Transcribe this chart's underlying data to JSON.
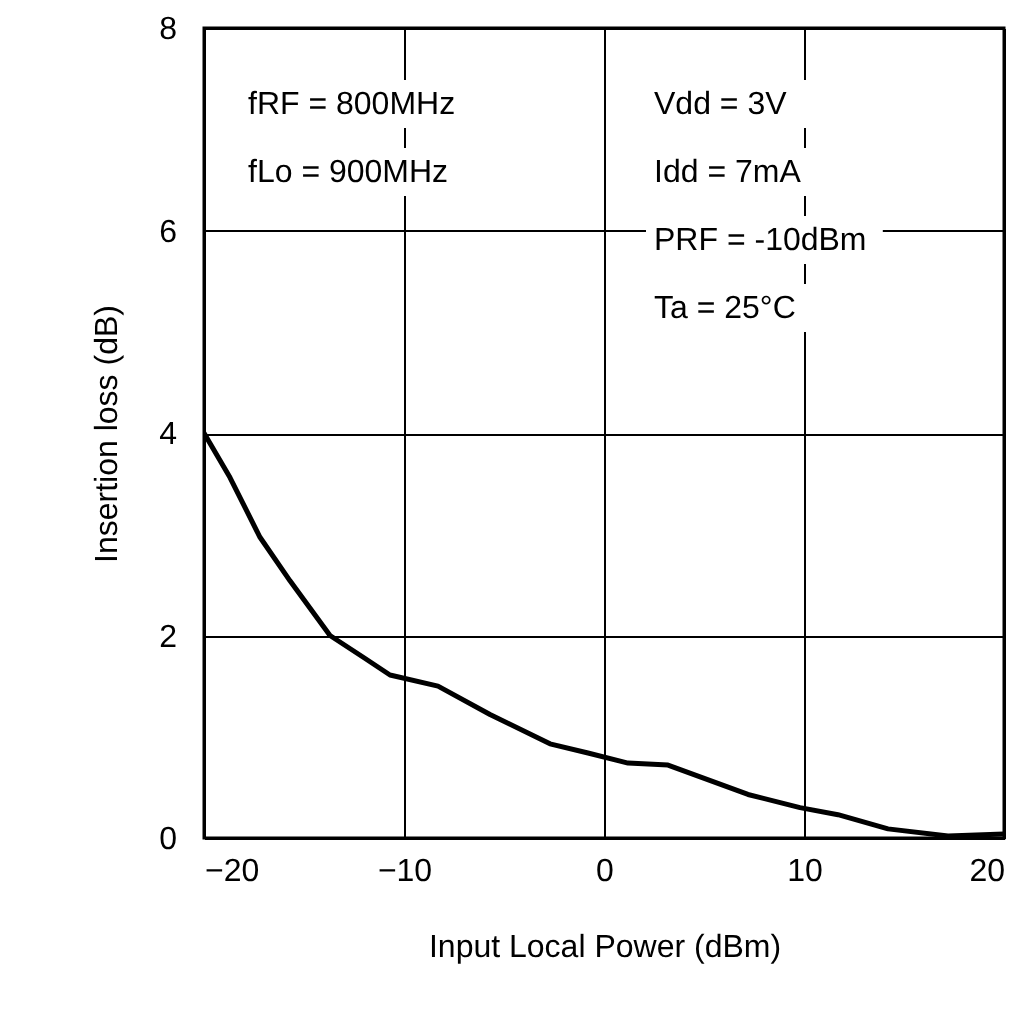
{
  "chart_data": {
    "type": "line",
    "xlabel": "Input Local Power (dBm)",
    "ylabel": "Insertion loss (dB)",
    "xlim": [
      -20,
      20
    ],
    "xticks": [
      -20,
      -10,
      0,
      10,
      20
    ],
    "ylim": [
      0,
      8
    ],
    "yticks": [
      0,
      2,
      4,
      6,
      8
    ],
    "grid": true,
    "line_style": "solid",
    "series": [
      {
        "color": "#000000",
        "x": [
          -20,
          -18.7,
          -17.2,
          -15.7,
          -13.7,
          -12.0,
          -10.7,
          -8.3,
          -5.7,
          -2.7,
          -0.8,
          1.2,
          3.2,
          7.2,
          9.8,
          11.7,
          14.2,
          17.2,
          20
        ],
        "values": [
          4.0,
          3.56,
          2.97,
          2.54,
          2.0,
          1.78,
          1.61,
          1.5,
          1.22,
          0.93,
          0.84,
          0.74,
          0.72,
          0.43,
          0.3,
          0.23,
          0.09,
          0.02,
          0.04
        ]
      }
    ],
    "annotations": [
      "fRF = 800MHz",
      "fLo = 900MHz",
      "Vdd = 3V",
      "Idd = 7mA",
      "PRF = -10dBm",
      "Ta = 25°C"
    ]
  }
}
